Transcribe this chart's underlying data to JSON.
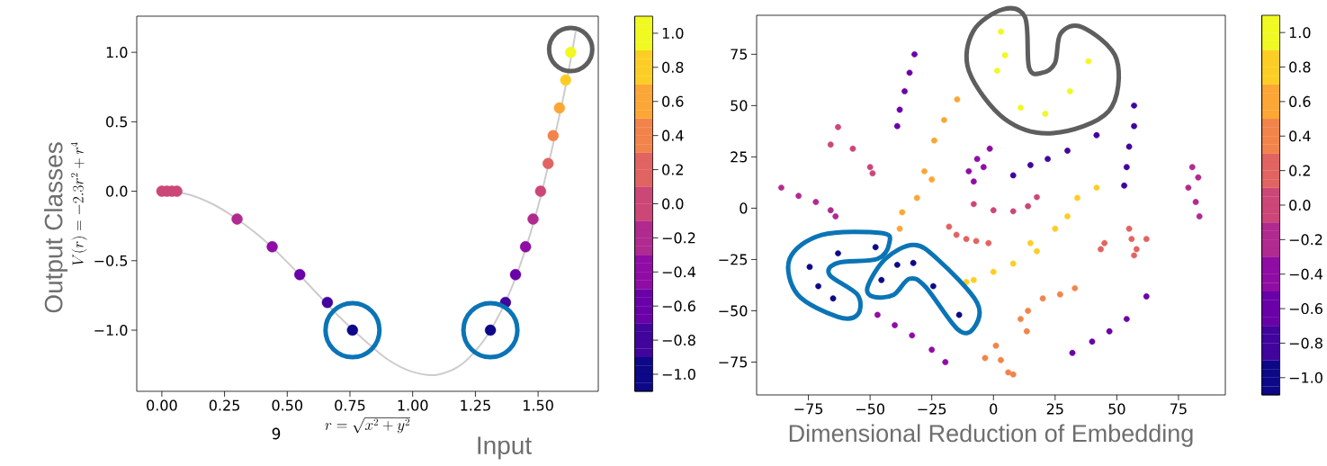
{
  "chart_data": [
    {
      "type": "scatter",
      "xlabel": "r = \\sqrt{x^2 + y^2}",
      "ylabel": "V(r) = -2.3r^2 + r^4",
      "annotations": [
        "9",
        "Output Classes",
        "Input"
      ],
      "xlim": [
        -0.1,
        1.74
      ],
      "ylim": [
        -1.44,
        1.26
      ],
      "xticks": [
        {
          "value": 0,
          "label": "0.00"
        },
        0.25,
        {
          "value": 0.5,
          "label": "0.50"
        },
        0.75,
        {
          "value": 1,
          "label": "1.00"
        },
        1.25,
        {
          "value": 1.5,
          "label": "1.50"
        }
      ],
      "yticks": [
        {
          "value": -1,
          "label": "−1.0"
        },
        {
          "value": -0.5,
          "label": "−0.5"
        },
        {
          "value": 0,
          "label": "0.0"
        },
        0.5,
        {
          "value": 1,
          "label": "1.0"
        }
      ],
      "clim": [
        -1.1,
        1.1
      ],
      "cticks": [
        {
          "value": -1,
          "label": "−1.0"
        },
        {
          "value": -0.8,
          "label": "−0.8"
        },
        {
          "value": -0.6,
          "label": "−0.6"
        },
        {
          "value": -0.4,
          "label": "−0.4"
        },
        {
          "value": -0.2,
          "label": "−0.2"
        },
        {
          "value": 0,
          "label": "0.0"
        },
        0.2,
        0.4,
        0.6,
        0.8,
        {
          "value": 1,
          "label": "1.0"
        }
      ],
      "series": [
        {
          "type": "line",
          "color": "#cccccc",
          "x": [
            0,
            0.1,
            0.2,
            0.3,
            0.4,
            0.5,
            0.6,
            0.7,
            0.8,
            0.9,
            1.0,
            1.1,
            1.2,
            1.3,
            1.4,
            1.5,
            1.6,
            1.65
          ],
          "values": [
            0,
            -0.02,
            -0.09,
            -0.2,
            -0.34,
            -0.51,
            -0.7,
            -0.89,
            -1.06,
            -1.21,
            -1.3,
            -1.32,
            -1.24,
            -1.03,
            -0.67,
            -0.11,
            0.67,
            1.15
          ]
        },
        {
          "type": "scatter",
          "x": [
            0,
            0.02,
            0.04,
            0.06,
            0.3,
            0.44,
            0.55,
            0.66,
            0.76,
            1.31,
            1.37,
            1.41,
            1.45,
            1.48,
            1.51,
            1.54,
            1.56,
            1.585,
            1.61,
            1.63
          ],
          "values": [
            0,
            0,
            0,
            0,
            -0.2,
            -0.4,
            -0.6,
            -0.8,
            -1.0,
            -1.0,
            -0.8,
            -0.6,
            -0.4,
            -0.2,
            0,
            0.2,
            0.4,
            0.6,
            0.8,
            1.0
          ],
          "colors": [
            "#cc4778",
            "#cc4778",
            "#cc4778",
            "#cc4778",
            "#b12a90",
            "#8f0da4",
            "#6a00a8",
            "#41049d",
            "#0d0887",
            "#0d0887",
            "#41049d",
            "#6a00a8",
            "#8f0da4",
            "#b12a90",
            "#cc4778",
            "#e16462",
            "#f2844b",
            "#fca636",
            "#fcce25",
            "#f0f921"
          ]
        }
      ]
    },
    {
      "type": "scatter",
      "xlabel": "Dimensional Reduction of Embedding",
      "xlim": [
        -96,
        94
      ],
      "ylim": [
        -91,
        94
      ],
      "xticks": [
        {
          "value": -75,
          "label": "−75"
        },
        {
          "value": -50,
          "label": "−50"
        },
        {
          "value": -25,
          "label": "−25"
        },
        0,
        25,
        50,
        75
      ],
      "yticks": [
        {
          "value": -75,
          "label": "−75"
        },
        {
          "value": -50,
          "label": "−50"
        },
        {
          "value": -25,
          "label": "−25"
        },
        0,
        25,
        50,
        75
      ],
      "clim": [
        -1.1,
        1.1
      ],
      "cticks": [
        {
          "value": -1,
          "label": "−1.0"
        },
        {
          "value": -0.8,
          "label": "−0.8"
        },
        {
          "value": -0.6,
          "label": "−0.6"
        },
        {
          "value": -0.4,
          "label": "−0.4"
        },
        {
          "value": -0.2,
          "label": "−0.2"
        },
        {
          "value": 0,
          "label": "0.0"
        },
        0.2,
        0.4,
        0.6,
        0.8,
        {
          "value": 1,
          "label": "1.0"
        }
      ],
      "x": [
        -32,
        -34,
        -36,
        -38,
        -39,
        3,
        4.7,
        1.5,
        11,
        21,
        31,
        38.5,
        -14.7,
        -20,
        -24,
        -28,
        -25,
        -31,
        -37,
        -38,
        -63,
        -66,
        -57,
        -50,
        -49,
        -86,
        -79,
        -72,
        -66,
        -64,
        -6.6,
        -4,
        -10,
        -8,
        -1.5,
        8,
        15,
        22,
        30,
        41.8,
        57,
        57,
        55,
        54,
        53,
        80.6,
        83,
        79,
        82,
        83.5,
        -8,
        0,
        8,
        14,
        17.6,
        -18,
        -15,
        -11,
        -7,
        -2,
        41.8,
        34,
        30,
        25,
        15,
        17.6,
        8,
        0,
        -8,
        -11,
        45,
        43.5,
        55,
        56,
        58,
        62,
        57,
        -47.8,
        -63,
        -74.5,
        -71,
        -65,
        -45.4,
        -39,
        -32.5,
        -24.4,
        -13.9,
        14,
        20,
        27,
        33,
        11,
        13.5,
        -3.4,
        1,
        3,
        6,
        8,
        -47,
        -40,
        -33,
        -25,
        -19.5,
        32,
        40,
        47,
        54,
        62
      ],
      "values": [
        75,
        66,
        57,
        48,
        40,
        86,
        74.5,
        67,
        49,
        46,
        57,
        71.6,
        53,
        43,
        33,
        18,
        14,
        5,
        -2,
        -10,
        39.5,
        31,
        29,
        20,
        17,
        10,
        6,
        3,
        -1,
        -4,
        24,
        20,
        18,
        13,
        29,
        16,
        21,
        24,
        28,
        35.6,
        50,
        40,
        30,
        20,
        11,
        20,
        15,
        10,
        3,
        -4,
        2,
        -1,
        -1.5,
        1,
        5.4,
        -9,
        -13,
        -15,
        -16,
        -17,
        10,
        5,
        -4,
        -10,
        -17,
        -21,
        -27,
        -31,
        -35,
        -36,
        -17,
        -20,
        -10,
        -15,
        -20,
        -15,
        -23,
        -19,
        -22,
        -28.6,
        -38,
        -44,
        -35,
        -27.6,
        -26.7,
        -38,
        -52,
        -50,
        -44,
        -42,
        -39,
        -54,
        -60,
        -73,
        -67,
        -74,
        -80,
        -81,
        -52,
        -57,
        -62,
        -69,
        -75,
        -70.5,
        -65,
        -60,
        -54,
        -43
      ],
      "cvalues": [
        -0.6,
        -0.6,
        -0.6,
        -0.6,
        -0.6,
        1,
        1,
        1,
        1,
        1,
        1,
        1,
        0.6,
        0.6,
        0.6,
        0.6,
        0.6,
        0.6,
        0.6,
        0.6,
        0,
        0,
        0,
        0,
        0,
        -0.2,
        -0.2,
        -0.2,
        -0.2,
        -0.2,
        -0.4,
        -0.4,
        -0.4,
        -0.4,
        -0.4,
        -0.8,
        -0.8,
        -0.8,
        -0.8,
        -0.8,
        -0.8,
        -0.8,
        -0.8,
        -0.8,
        -0.8,
        -0.2,
        -0.2,
        -0.2,
        -0.2,
        -0.2,
        0,
        0,
        0,
        0,
        0,
        0.2,
        0.2,
        0.2,
        0.2,
        0.2,
        0.8,
        0.8,
        0.8,
        0.8,
        0.8,
        0.8,
        0.8,
        0.8,
        0.8,
        0.8,
        0.2,
        0.2,
        0.2,
        0.2,
        0.2,
        0.2,
        0.2,
        -1,
        -1,
        -1,
        -1,
        -1,
        -1,
        -1,
        -1,
        -1,
        -1,
        0.4,
        0.4,
        0.4,
        0.4,
        0.4,
        0.4,
        0.4,
        0.4,
        0.4,
        0.4,
        0.4,
        -0.4,
        -0.4,
        -0.4,
        -0.4,
        -0.4,
        -0.6,
        -0.6,
        -0.6,
        -0.6,
        -0.6
      ]
    }
  ]
}
